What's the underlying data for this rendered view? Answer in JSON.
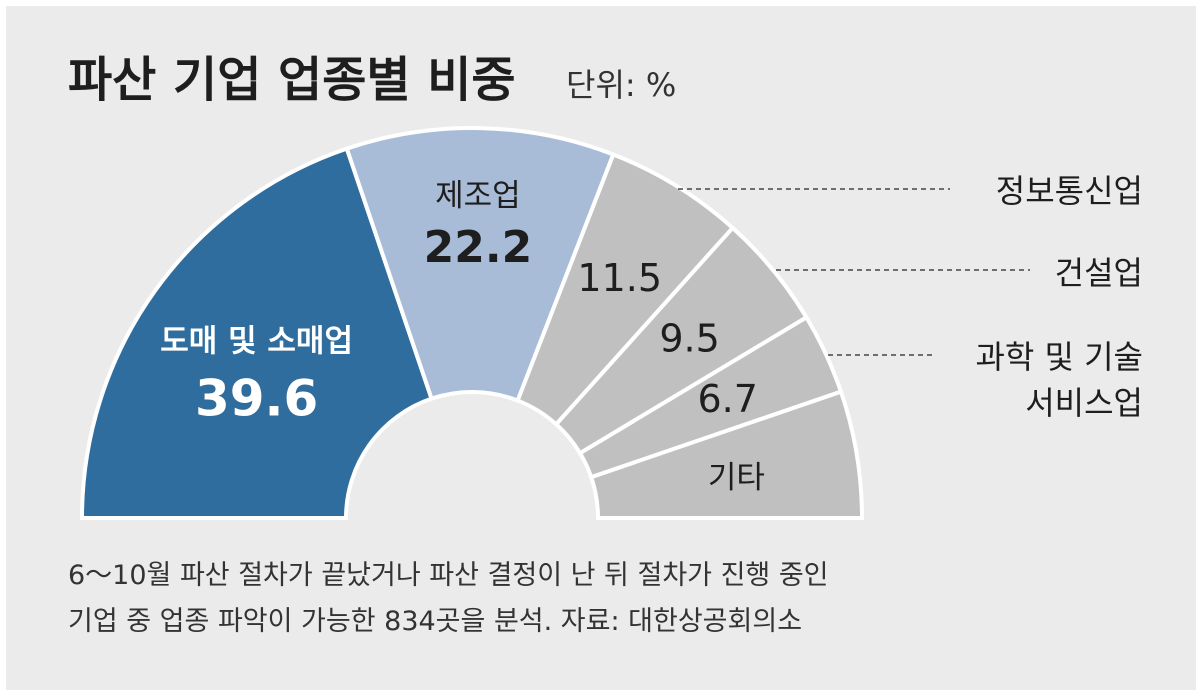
{
  "chart_data": {
    "type": "pie",
    "variant": "half-donut",
    "title": "파산 기업 업종별 비중",
    "unit": "단위: %",
    "categories": [
      "도매 및 소매업",
      "제조업",
      "정보통신업",
      "건설업",
      "과학 및 기술 서비스업",
      "기타"
    ],
    "values": [
      39.6,
      22.2,
      11.5,
      9.5,
      6.7,
      10.5
    ],
    "value_labels": [
      "39.6",
      "22.2",
      "11.5",
      "9.5",
      "6.7",
      ""
    ],
    "slice_labels": [
      "도매 및 소매업",
      "제조업",
      "",
      "",
      "",
      "기타"
    ],
    "external_labels": [
      {
        "lines": [
          "정보통신업"
        ]
      },
      {
        "lines": [
          "건설업"
        ]
      },
      {
        "lines": [
          "과학 및 기술",
          "서비스업"
        ]
      }
    ],
    "colors": [
      "#2f6d9e",
      "#a8bcd8",
      "#c0c0c0",
      "#c0c0c0",
      "#c0c0c0",
      "#c0c0c0"
    ],
    "legend": "right",
    "grid": false
  },
  "notes": [
    "6～10월 파산 절차가 끝났거나 파산 결정이 난 뒤 절차가 진행 중인",
    "기업 중 업종 파악이 가능한 834곳을 분석.  자료: 대한상공회의소"
  ],
  "colors": {
    "background": "#ebebeb",
    "separator": "#ffffff",
    "leader": "#444444"
  }
}
